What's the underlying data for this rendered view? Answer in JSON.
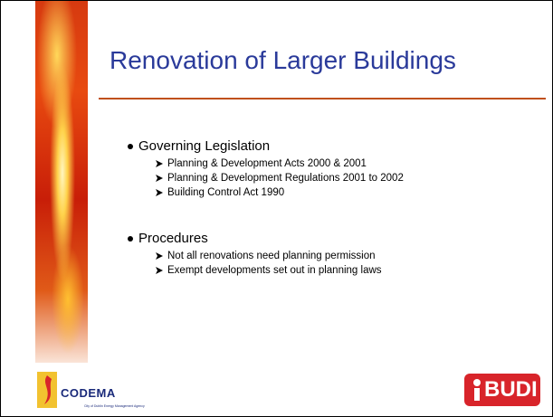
{
  "header": {
    "title": "Renovation of Larger Buildings"
  },
  "sections": [
    {
      "heading": "Governing Legislation",
      "items": [
        "Planning & Development Acts 2000 & 2001",
        "Planning & Development Regulations 2001 to 2002",
        "Building Control Act 1990"
      ]
    },
    {
      "heading": "Procedures",
      "items": [
        "Not all renovations need planning permission",
        "Exempt developments set out in planning laws"
      ]
    }
  ],
  "logos": {
    "codema": {
      "name": "CODEMA",
      "tagline": "City of Dublin Energy Management Agency"
    },
    "budi": "BUDI"
  }
}
